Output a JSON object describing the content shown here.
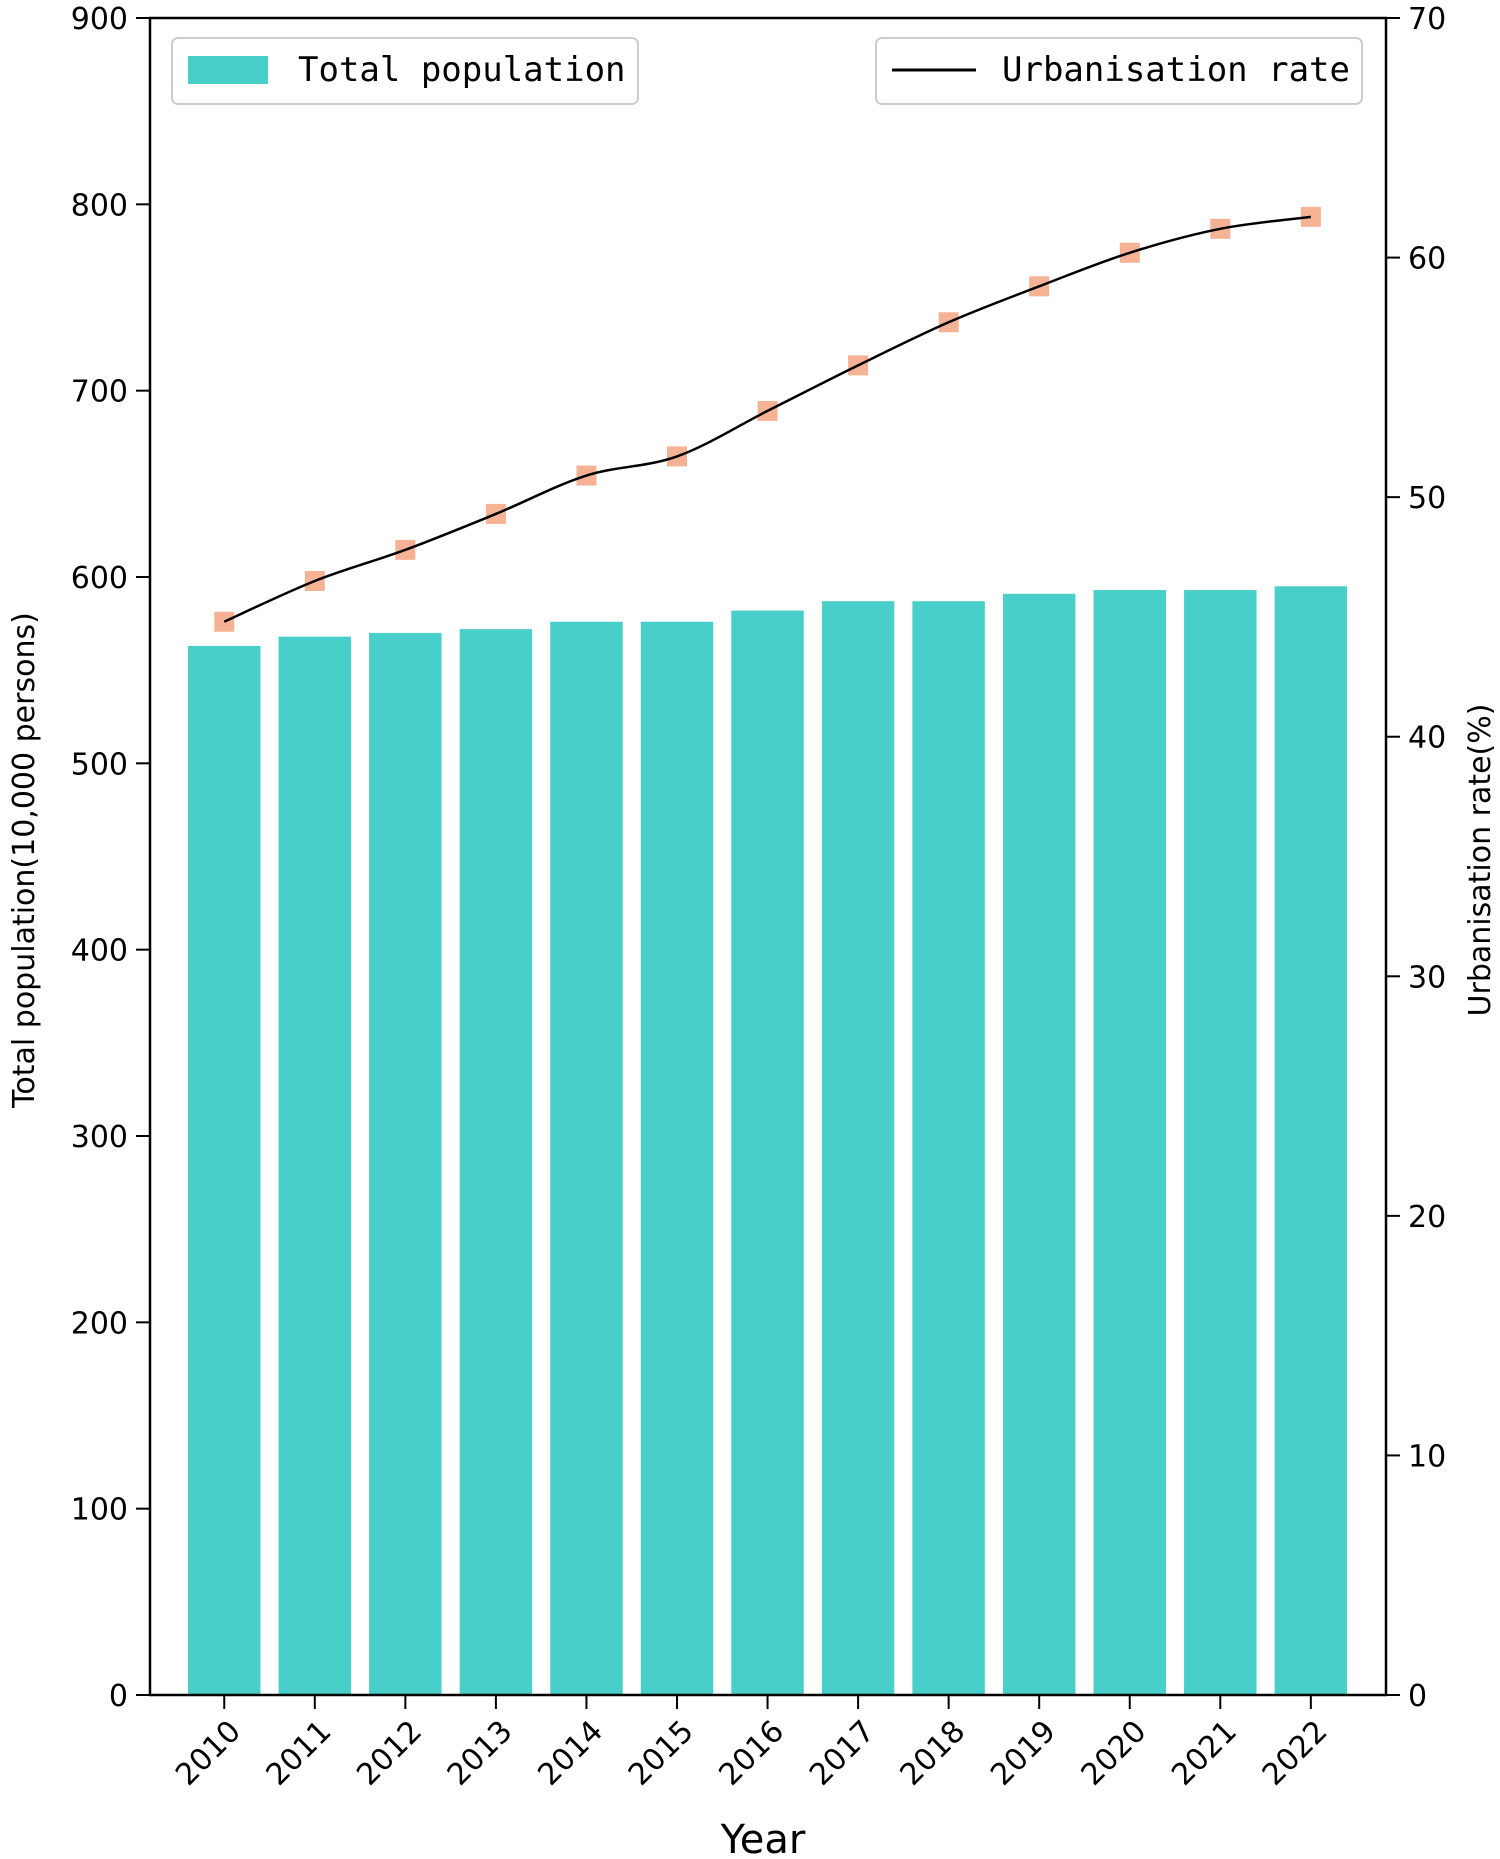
{
  "chart_data": {
    "type": "bar+line",
    "categories": [
      "2010",
      "2011",
      "2012",
      "2013",
      "2014",
      "2015",
      "2016",
      "2017",
      "2018",
      "2019",
      "2020",
      "2021",
      "2022"
    ],
    "series": [
      {
        "name": "Total population",
        "type": "bar",
        "axis": "left",
        "color": "#48cfca",
        "values": [
          563,
          568,
          570,
          572,
          576,
          576,
          582,
          587,
          587,
          591,
          593,
          593,
          595
        ]
      },
      {
        "name": "Urbanisation rate",
        "type": "line",
        "axis": "right",
        "color": "#000000",
        "marker_color": "#f4a582",
        "values": [
          44.8,
          46.5,
          47.8,
          49.3,
          50.9,
          51.7,
          53.6,
          55.5,
          57.3,
          58.8,
          60.2,
          61.2,
          61.7
        ]
      }
    ],
    "xlabel": "Year",
    "ylabel_left": "Total population(10,000 persons)",
    "ylabel_right": "Urbanisation rate(%)",
    "ylim_left": [
      0,
      900
    ],
    "ylim_right": [
      0,
      70
    ],
    "yticks_left": [
      0,
      100,
      200,
      300,
      400,
      500,
      600,
      700,
      800,
      900
    ],
    "yticks_right": [
      0,
      10,
      20,
      30,
      40,
      50,
      60,
      70
    ],
    "grid": false,
    "legend_placement": [
      "top-left",
      "top-right"
    ]
  }
}
